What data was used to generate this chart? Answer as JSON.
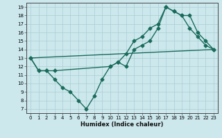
{
  "line1_x": [
    0,
    1,
    2,
    3,
    4,
    5,
    6,
    7,
    8,
    9,
    10,
    11,
    12,
    13,
    14,
    15,
    16,
    17,
    18,
    19,
    20,
    21,
    22,
    23
  ],
  "line1_y": [
    13,
    11.5,
    11.5,
    10.5,
    9.5,
    9.0,
    8.0,
    7.0,
    8.5,
    10.5,
    12.0,
    12.5,
    12.0,
    14.0,
    14.5,
    15.0,
    16.5,
    19.0,
    18.5,
    18.0,
    16.5,
    15.5,
    14.5,
    14.0
  ],
  "line2_x": [
    0,
    1,
    2,
    3,
    10,
    11,
    12,
    13,
    14,
    15,
    16,
    17,
    18,
    19,
    20,
    21,
    22,
    23
  ],
  "line2_y": [
    13,
    11.5,
    11.5,
    11.5,
    12.0,
    12.5,
    13.5,
    15.0,
    15.5,
    16.5,
    17.0,
    19.0,
    18.5,
    18.0,
    18.0,
    16.0,
    15.0,
    14.0
  ],
  "line3_x": [
    0,
    23
  ],
  "line3_y": [
    13,
    14.0
  ],
  "color": "#1a6b5a",
  "bg_color": "#cce8ed",
  "grid_color": "#aacdd4",
  "xlabel": "Humidex (Indice chaleur)",
  "xlim": [
    -0.5,
    23.5
  ],
  "ylim": [
    6.5,
    19.5
  ],
  "yticks": [
    7,
    8,
    9,
    10,
    11,
    12,
    13,
    14,
    15,
    16,
    17,
    18,
    19
  ],
  "xticks": [
    0,
    1,
    2,
    3,
    4,
    5,
    6,
    7,
    8,
    9,
    10,
    11,
    12,
    13,
    14,
    15,
    16,
    17,
    18,
    19,
    20,
    21,
    22,
    23
  ],
  "marker": "D",
  "markersize": 2.5,
  "linewidth": 1.0
}
